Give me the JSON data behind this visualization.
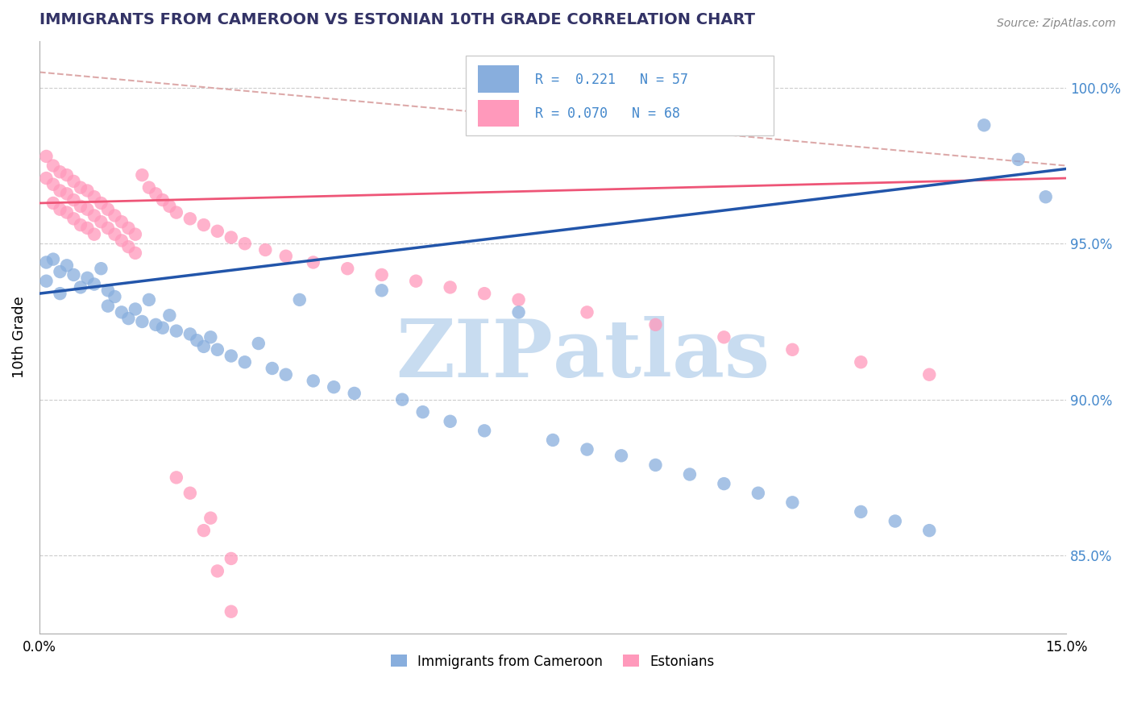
{
  "title": "IMMIGRANTS FROM CAMEROON VS ESTONIAN 10TH GRADE CORRELATION CHART",
  "source_text": "Source: ZipAtlas.com",
  "ylabel": "10th Grade",
  "yaxis_labels": [
    "100.0%",
    "95.0%",
    "90.0%",
    "85.0%"
  ],
  "yaxis_values": [
    1.0,
    0.95,
    0.9,
    0.85
  ],
  "x_min": 0.0,
  "x_max": 0.15,
  "y_min": 0.825,
  "y_max": 1.015,
  "legend_r1": "R =  0.221",
  "legend_n1": "N = 57",
  "legend_r2": "R = 0.070",
  "legend_n2": "N = 68",
  "color_blue": "#88AEDD",
  "color_pink": "#FF99BB",
  "color_blue_line": "#2255AA",
  "color_pink_line": "#EE5577",
  "color_dashed": "#DDAAAA",
  "title_color": "#333366",
  "right_axis_color": "#4488CC",
  "watermark_color": "#C8DCF0",
  "blue_line_x": [
    0.0,
    0.15
  ],
  "blue_line_y": [
    0.934,
    0.974
  ],
  "pink_line_x": [
    0.0,
    0.15
  ],
  "pink_line_y": [
    0.963,
    0.971
  ],
  "dashed_line_x": [
    0.0,
    0.15
  ],
  "dashed_line_y": [
    1.005,
    0.975
  ],
  "blue_x": [
    0.001,
    0.001,
    0.002,
    0.003,
    0.003,
    0.004,
    0.005,
    0.006,
    0.007,
    0.008,
    0.009,
    0.01,
    0.01,
    0.011,
    0.012,
    0.013,
    0.014,
    0.015,
    0.016,
    0.017,
    0.018,
    0.019,
    0.02,
    0.022,
    0.023,
    0.024,
    0.025,
    0.026,
    0.028,
    0.03,
    0.032,
    0.034,
    0.036,
    0.038,
    0.04,
    0.043,
    0.046,
    0.05,
    0.053,
    0.056,
    0.06,
    0.065,
    0.07,
    0.075,
    0.08,
    0.085,
    0.09,
    0.095,
    0.1,
    0.105,
    0.11,
    0.12,
    0.125,
    0.13,
    0.138,
    0.143,
    0.147
  ],
  "blue_y": [
    0.944,
    0.938,
    0.945,
    0.941,
    0.934,
    0.943,
    0.94,
    0.936,
    0.939,
    0.937,
    0.942,
    0.935,
    0.93,
    0.933,
    0.928,
    0.926,
    0.929,
    0.925,
    0.932,
    0.924,
    0.923,
    0.927,
    0.922,
    0.921,
    0.919,
    0.917,
    0.92,
    0.916,
    0.914,
    0.912,
    0.918,
    0.91,
    0.908,
    0.932,
    0.906,
    0.904,
    0.902,
    0.935,
    0.9,
    0.896,
    0.893,
    0.89,
    0.928,
    0.887,
    0.884,
    0.882,
    0.879,
    0.876,
    0.873,
    0.87,
    0.867,
    0.864,
    0.861,
    0.858,
    0.988,
    0.977,
    0.965
  ],
  "pink_x": [
    0.001,
    0.001,
    0.002,
    0.002,
    0.002,
    0.003,
    0.003,
    0.003,
    0.004,
    0.004,
    0.004,
    0.005,
    0.005,
    0.005,
    0.006,
    0.006,
    0.006,
    0.007,
    0.007,
    0.007,
    0.008,
    0.008,
    0.008,
    0.009,
    0.009,
    0.01,
    0.01,
    0.011,
    0.011,
    0.012,
    0.012,
    0.013,
    0.013,
    0.014,
    0.014,
    0.015,
    0.016,
    0.017,
    0.018,
    0.019,
    0.02,
    0.022,
    0.024,
    0.026,
    0.028,
    0.03,
    0.033,
    0.036,
    0.04,
    0.045,
    0.05,
    0.055,
    0.06,
    0.065,
    0.07,
    0.08,
    0.09,
    0.1,
    0.11,
    0.12,
    0.13,
    0.02,
    0.025,
    0.028,
    0.022,
    0.024,
    0.026,
    0.028
  ],
  "pink_y": [
    0.978,
    0.971,
    0.975,
    0.969,
    0.963,
    0.973,
    0.967,
    0.961,
    0.972,
    0.966,
    0.96,
    0.97,
    0.964,
    0.958,
    0.968,
    0.962,
    0.956,
    0.967,
    0.961,
    0.955,
    0.965,
    0.959,
    0.953,
    0.963,
    0.957,
    0.961,
    0.955,
    0.959,
    0.953,
    0.957,
    0.951,
    0.955,
    0.949,
    0.953,
    0.947,
    0.972,
    0.968,
    0.966,
    0.964,
    0.962,
    0.96,
    0.958,
    0.956,
    0.954,
    0.952,
    0.95,
    0.948,
    0.946,
    0.944,
    0.942,
    0.94,
    0.938,
    0.936,
    0.934,
    0.932,
    0.928,
    0.924,
    0.92,
    0.916,
    0.912,
    0.908,
    0.875,
    0.862,
    0.849,
    0.87,
    0.858,
    0.845,
    0.832
  ]
}
